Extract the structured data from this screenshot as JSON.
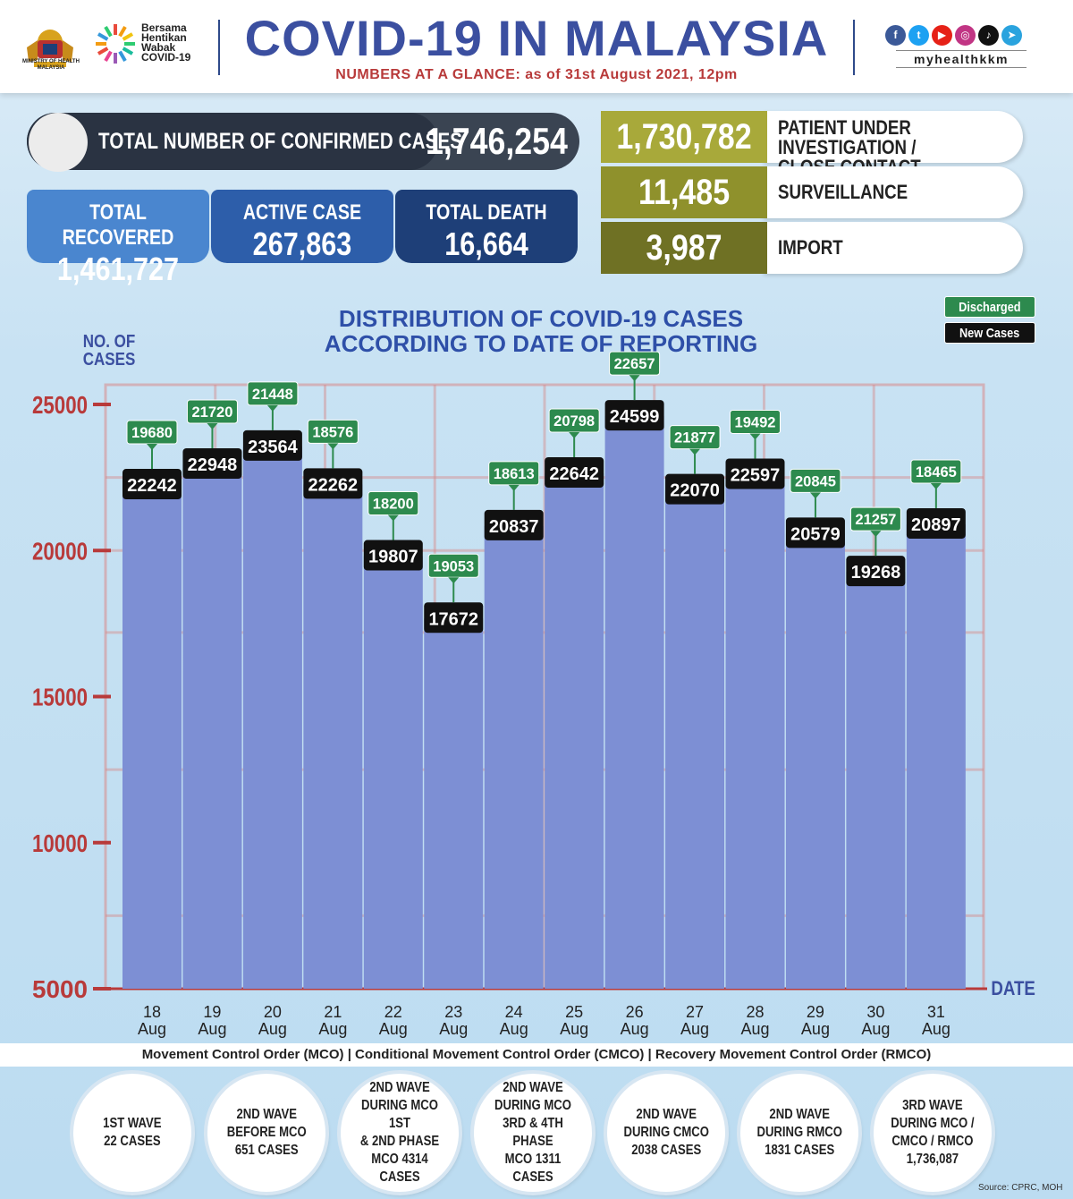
{
  "header": {
    "ministry_text": "MINISTRY OF HEALTH MALAYSIA",
    "campaign_text": "Bersama\nHentikan\nWabak\nCOVID-19",
    "title": "COVID-19 IN MALAYSIA",
    "subtitle": "NUMBERS AT A GLANCE: as of 31st August 2021, 12pm",
    "social_icons": [
      "facebook-icon",
      "twitter-icon",
      "youtube-icon",
      "instagram-icon",
      "tiktok-icon",
      "telegram-icon"
    ],
    "handle": "myhealthkkm"
  },
  "totals": {
    "confirmed_label": "TOTAL NUMBER OF CONFIRMED CASES",
    "confirmed_value": "1,746,254",
    "recovered_label": "TOTAL RECOVERED",
    "recovered_value": "1,461,727",
    "active_label": "ACTIVE CASE",
    "active_value": "267,863",
    "death_label": "TOTAL DEATH",
    "death_value": "16,664"
  },
  "categories": [
    {
      "value": "1,730,782",
      "label": "PATIENT UNDER INVESTIGATION /\nCLOSE CONTACT",
      "color": "#a8a93a"
    },
    {
      "value": "11,485",
      "label": "SURVEILLANCE",
      "color": "#8f912c"
    },
    {
      "value": "3,987",
      "label": "IMPORT",
      "color": "#6f7124"
    }
  ],
  "colors": {
    "bar": "#7d8fd4",
    "discharged": "#2d8a4e",
    "new_cases": "#111111",
    "grid": "#d88a8a",
    "axis_text": "#b83a3a",
    "recovered": "#4a86cf",
    "active": "#2d5eaa",
    "death": "#1e3f78"
  },
  "legend": {
    "discharged": "Discharged",
    "new_cases": "New Cases"
  },
  "chart_data": {
    "type": "bar",
    "title": "DISTRIBUTION OF COVID-19 CASES\nACCORDING TO DATE OF REPORTING",
    "ylabel": "NO. OF\nCASES",
    "xlabel": "DATE",
    "categories": [
      [
        "18",
        "Aug"
      ],
      [
        "19",
        "Aug"
      ],
      [
        "20",
        "Aug"
      ],
      [
        "21",
        "Aug"
      ],
      [
        "22",
        "Aug"
      ],
      [
        "23",
        "Aug"
      ],
      [
        "24",
        "Aug"
      ],
      [
        "25",
        "Aug"
      ],
      [
        "26",
        "Aug"
      ],
      [
        "27",
        "Aug"
      ],
      [
        "28",
        "Aug"
      ],
      [
        "29",
        "Aug"
      ],
      [
        "30",
        "Aug"
      ],
      [
        "31",
        "Aug"
      ]
    ],
    "series": [
      {
        "name": "New Cases",
        "values": [
          22242,
          22948,
          23564,
          22262,
          19807,
          17672,
          20837,
          22642,
          24599,
          22070,
          22597,
          20579,
          19268,
          20897
        ]
      },
      {
        "name": "Discharged",
        "values": [
          19680,
          21720,
          21448,
          18576,
          18200,
          19053,
          18613,
          20798,
          22657,
          21877,
          19492,
          20845,
          21257,
          18465
        ]
      }
    ],
    "yticks": [
      5000,
      10000,
      15000,
      20000,
      25000
    ],
    "ylim": [
      5000,
      25000
    ],
    "grid": true,
    "legend": "top-right"
  },
  "footer": {
    "mco_line": "Movement Control Order (MCO) | Conditional Movement Control Order (CMCO) | Recovery Movement Control Order (RMCO)",
    "waves": [
      "1ST WAVE\n22 CASES",
      "2ND WAVE\nBEFORE MCO\n651 CASES",
      "2ND WAVE\nDURING MCO 1ST\n& 2ND PHASE\nMCO 4314\nCASES",
      "2ND WAVE\nDURING MCO\n3RD & 4TH PHASE\nMCO 1311\nCASES",
      "2ND WAVE\nDURING CMCO\n2038 CASES",
      "2ND WAVE\nDURING RMCO\n1831 CASES",
      "3RD WAVE\nDURING MCO /\nCMCO / RMCO\n1,736,087"
    ],
    "source": "Source: CPRC, MOH"
  }
}
